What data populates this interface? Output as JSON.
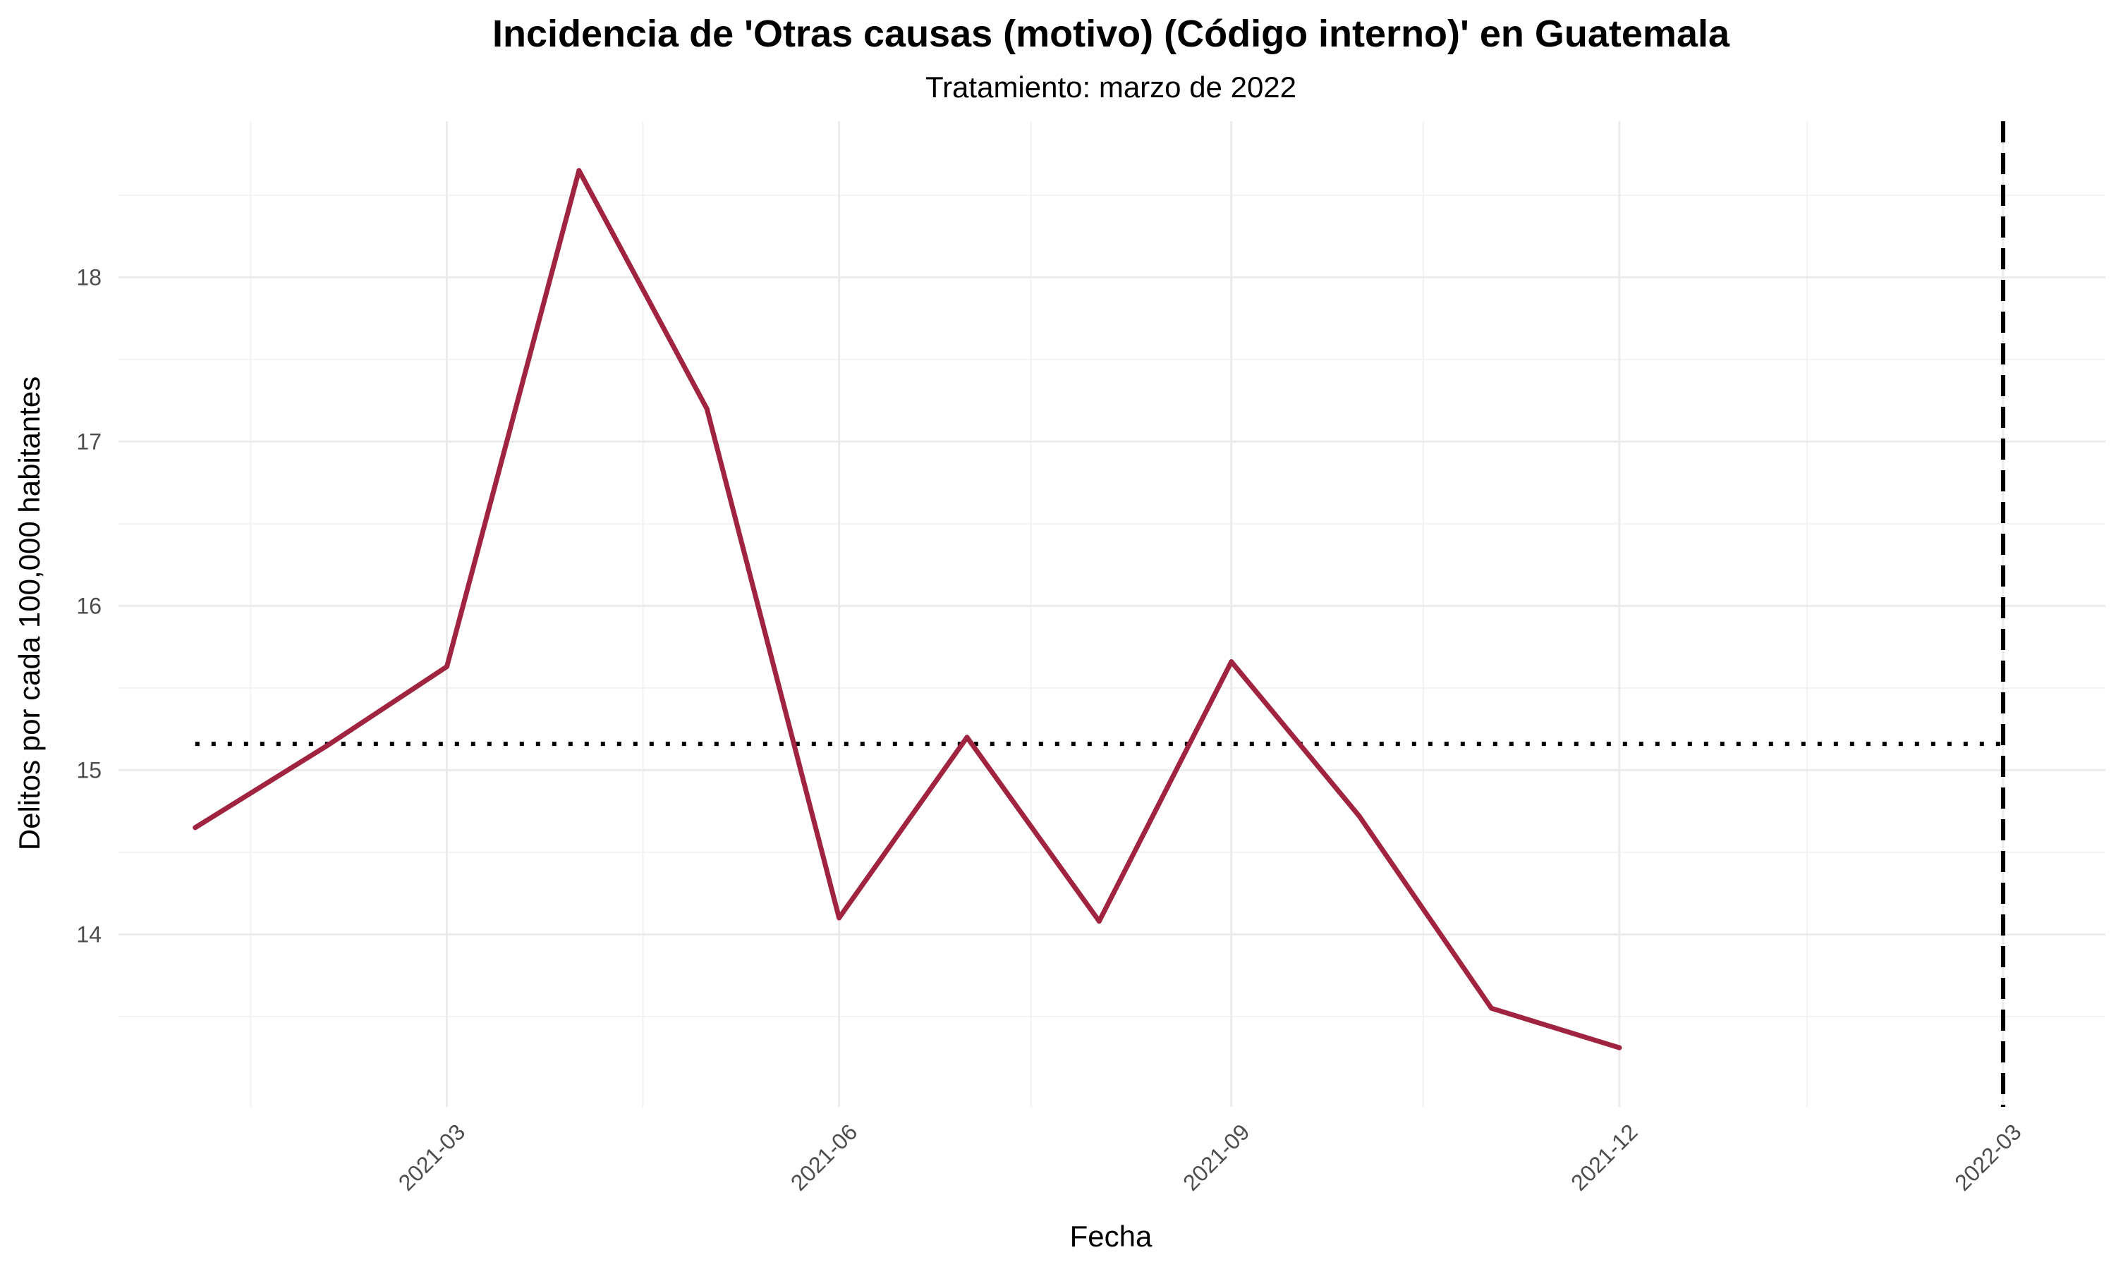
{
  "chart_data": {
    "type": "line",
    "title": "Incidencia de 'Otras causas (motivo) (Código interno)' en Guatemala",
    "subtitle": "Tratamiento: marzo de 2022",
    "xlabel": "Fecha",
    "ylabel": "Delitos por cada 100,000 habitantes",
    "x_ticks": [
      "2021-03",
      "2021-06",
      "2021-09",
      "2021-12",
      "2022-03"
    ],
    "y_ticks": [
      14,
      15,
      16,
      17,
      18
    ],
    "xlim": [
      "2020-12-14",
      "2022-03-25"
    ],
    "ylim": [
      12.95,
      18.95
    ],
    "grid": true,
    "series": [
      {
        "color": "#a0233f",
        "points": [
          {
            "x": "2021-01",
            "y": 14.65
          },
          {
            "x": "2021-02",
            "y": 15.15
          },
          {
            "x": "2021-03",
            "y": 15.63
          },
          {
            "x": "2021-04",
            "y": 18.65
          },
          {
            "x": "2021-05",
            "y": 17.2
          },
          {
            "x": "2021-06",
            "y": 14.1
          },
          {
            "x": "2021-07",
            "y": 15.2
          },
          {
            "x": "2021-08",
            "y": 14.08
          },
          {
            "x": "2021-09",
            "y": 15.66
          },
          {
            "x": "2021-10",
            "y": 14.72
          },
          {
            "x": "2021-11",
            "y": 13.55
          },
          {
            "x": "2021-12",
            "y": 13.31
          }
        ]
      }
    ],
    "reference_lines": [
      {
        "orientation": "horizontal",
        "y": 15.16,
        "style": "dotted",
        "color": "#000000",
        "x_from": "2021-01",
        "x_to": "2022-03"
      },
      {
        "orientation": "vertical",
        "x": "2022-03",
        "style": "dashed",
        "color": "#000000"
      }
    ]
  }
}
